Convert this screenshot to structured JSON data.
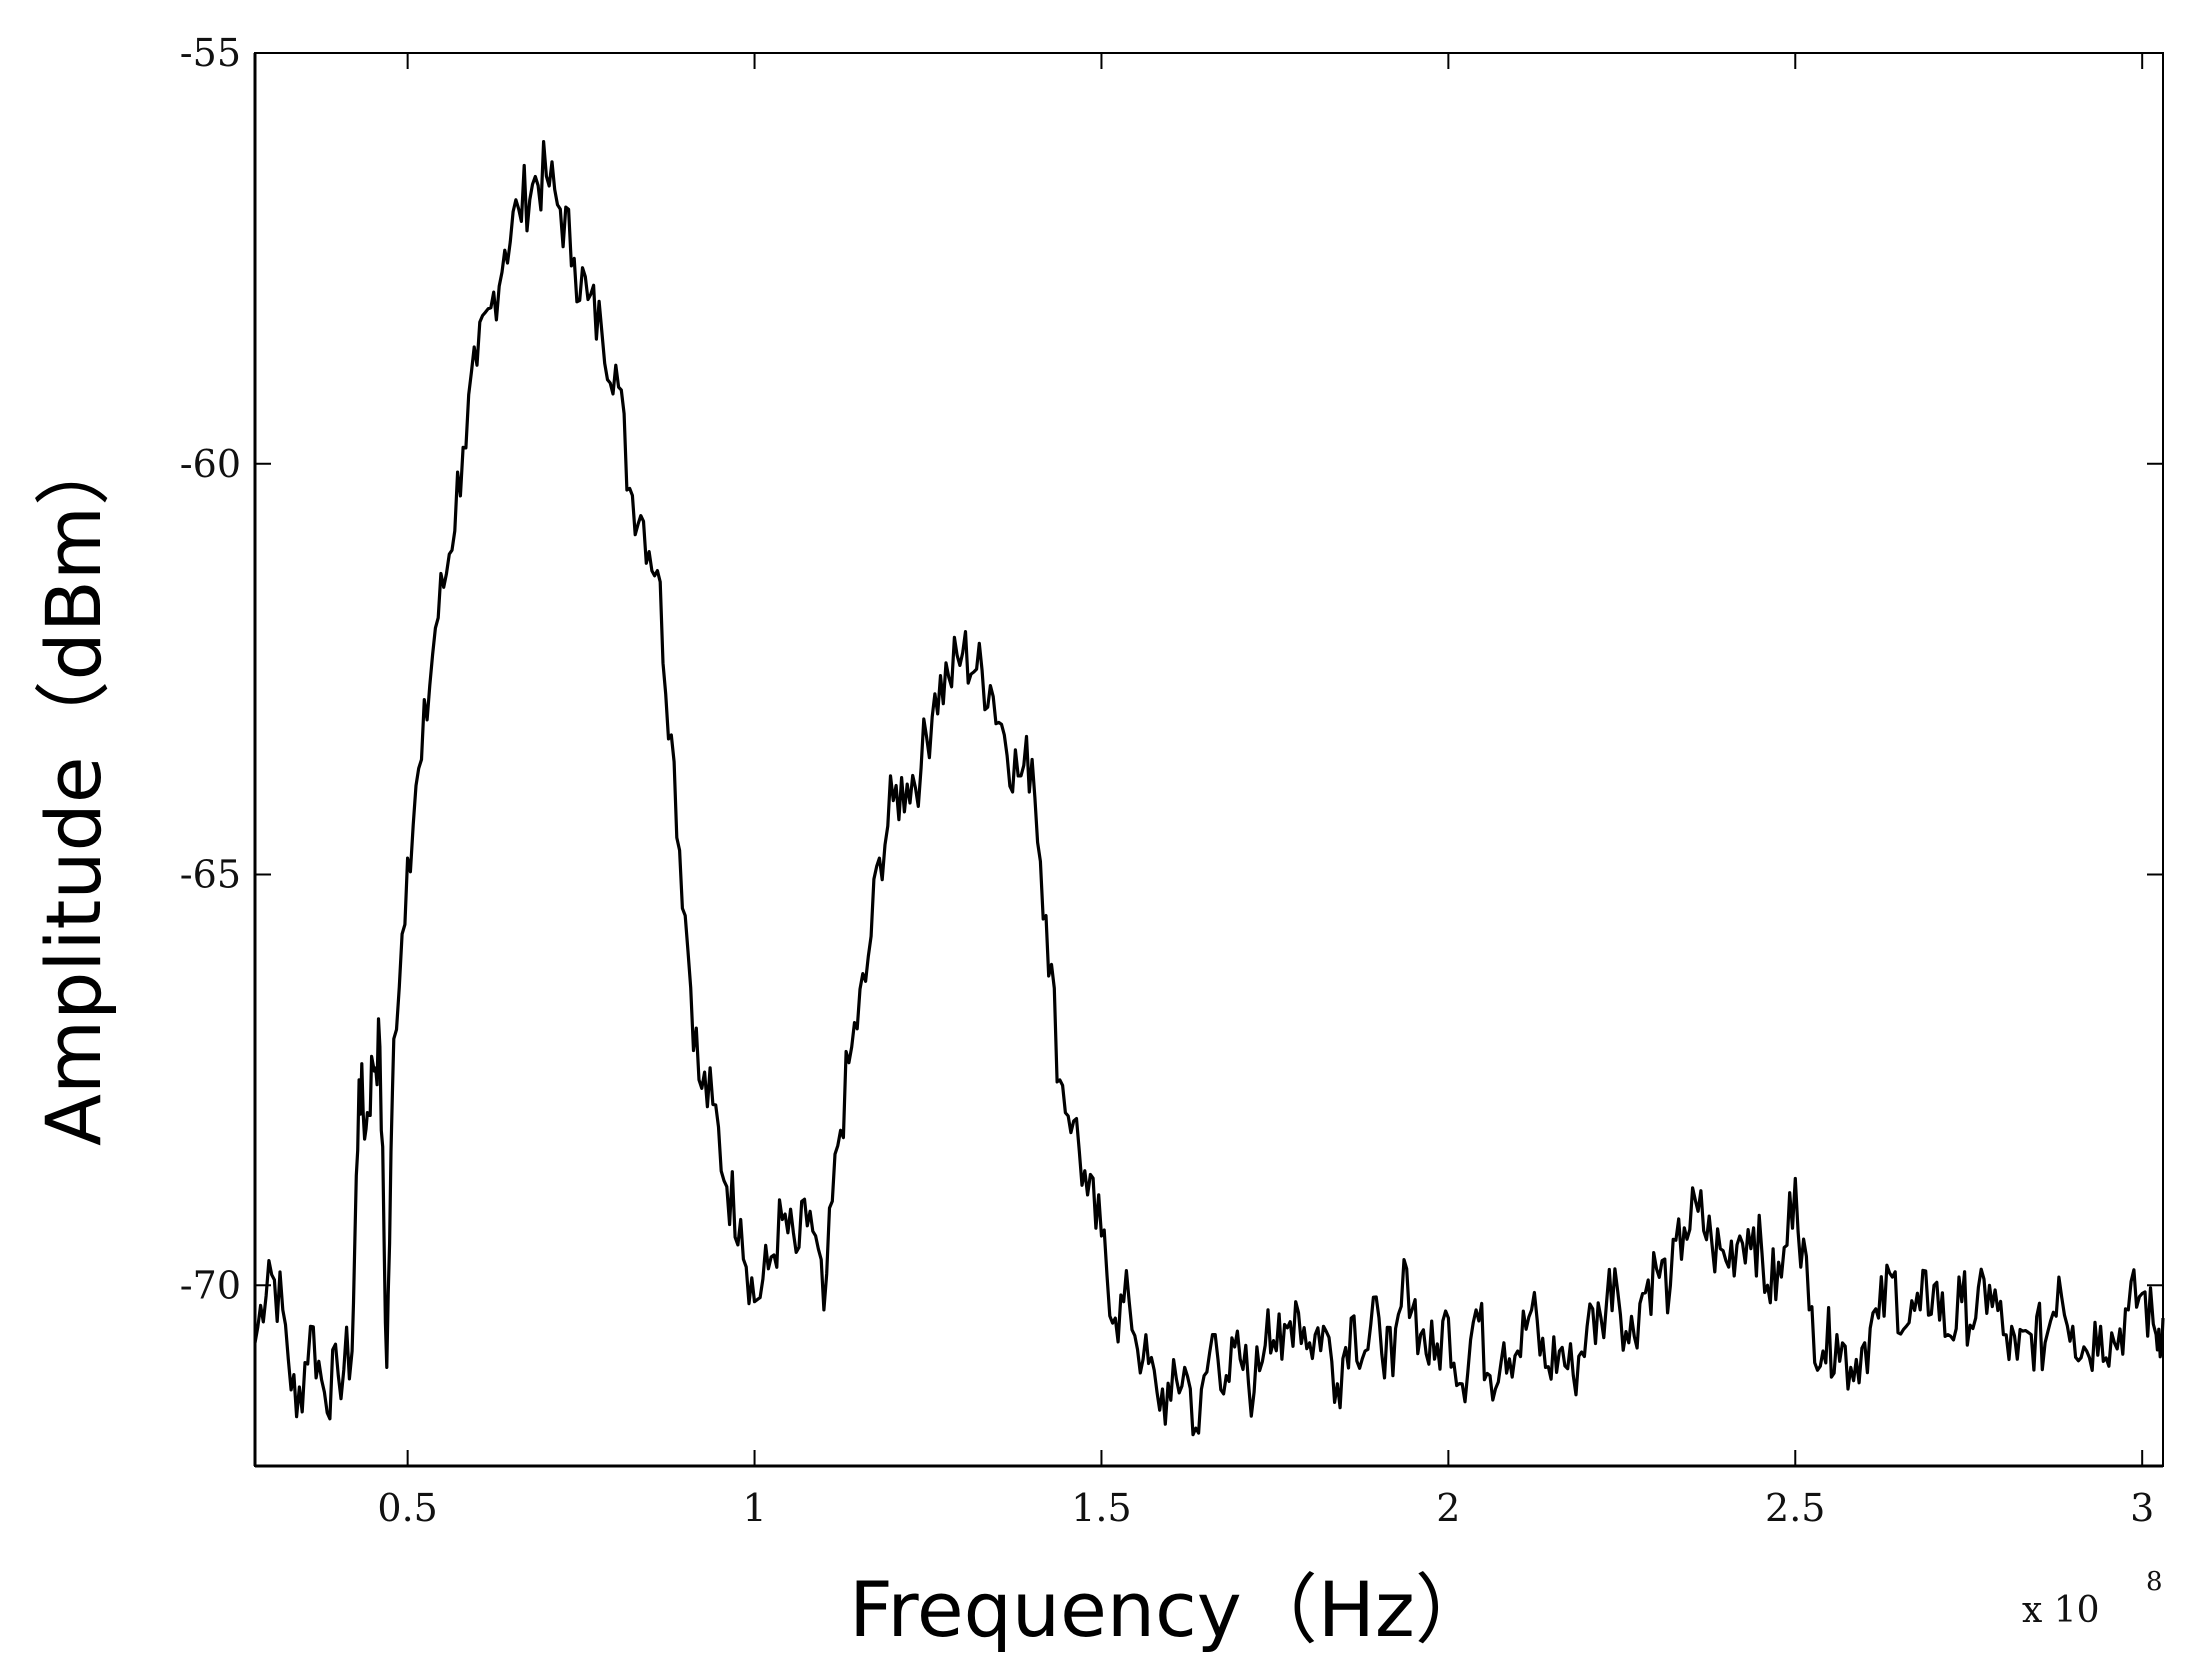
{
  "chart_data": {
    "type": "line",
    "title": "",
    "xlabel": "Frequency（Hz）",
    "ylabel": "Amplitude（dBm）",
    "x_multiplier_label": "x 10",
    "x_multiplier_exponent": "8",
    "xlim": [
      0.28,
      3.03
    ],
    "ylim": [
      -72.2,
      -55
    ],
    "x_ticks": [
      0.5,
      1,
      1.5,
      2,
      2.5,
      3
    ],
    "x_tick_labels": [
      "0.5",
      "1",
      "1.5",
      "2",
      "2.5",
      "3"
    ],
    "y_ticks": [
      -55,
      -60,
      -65,
      -70
    ],
    "y_tick_labels": [
      "-55",
      "-60",
      "-65",
      "-70"
    ],
    "grid": false,
    "legend": "none",
    "line_color": "#000000",
    "series": [
      {
        "x": [
          0.28,
          0.3,
          0.32,
          0.34,
          0.36,
          0.38,
          0.4,
          0.42,
          0.43,
          0.44,
          0.45,
          0.46,
          0.47,
          0.48,
          0.5,
          0.52,
          0.54,
          0.56,
          0.58,
          0.6,
          0.62,
          0.64,
          0.66,
          0.68,
          0.7,
          0.72,
          0.74,
          0.76,
          0.78,
          0.8,
          0.82,
          0.84,
          0.86,
          0.88,
          0.9,
          0.92,
          0.94,
          0.96,
          0.98,
          1.0,
          1.02,
          1.04,
          1.06,
          1.08,
          1.1,
          1.12,
          1.14,
          1.16,
          1.18,
          1.2,
          1.22,
          1.24,
          1.26,
          1.28,
          1.3,
          1.32,
          1.34,
          1.36,
          1.38,
          1.4,
          1.42,
          1.44,
          1.46,
          1.48,
          1.5,
          1.52,
          1.54,
          1.56,
          1.58,
          1.6,
          1.62,
          1.64,
          1.66,
          1.68,
          1.7,
          1.72,
          1.74,
          1.76,
          1.78,
          1.8,
          1.82,
          1.84,
          1.86,
          1.88,
          1.9,
          1.92,
          1.94,
          1.96,
          1.98,
          2.0,
          2.02,
          2.04,
          2.06,
          2.08,
          2.1,
          2.12,
          2.14,
          2.16,
          2.18,
          2.2,
          2.22,
          2.24,
          2.26,
          2.28,
          2.3,
          2.32,
          2.34,
          2.36,
          2.38,
          2.4,
          2.42,
          2.44,
          2.46,
          2.48,
          2.5,
          2.52,
          2.54,
          2.56,
          2.58,
          2.6,
          2.62,
          2.64,
          2.66,
          2.68,
          2.7,
          2.72,
          2.74,
          2.76,
          2.78,
          2.8,
          2.82,
          2.84,
          2.86,
          2.88,
          2.9,
          2.92,
          2.94,
          2.96,
          2.98,
          3.0,
          3.02,
          3.03
        ],
        "y": [
          -70.7,
          -69.7,
          -70.3,
          -71.6,
          -70.5,
          -71.3,
          -71.1,
          -70.8,
          -67.5,
          -68.1,
          -67.3,
          -67.1,
          -71.0,
          -67.0,
          -64.8,
          -63.6,
          -62.0,
          -61.1,
          -59.8,
          -58.8,
          -58.1,
          -57.4,
          -56.9,
          -56.6,
          -56.5,
          -56.9,
          -57.5,
          -58.0,
          -58.4,
          -58.8,
          -60.3,
          -60.7,
          -61.3,
          -63.3,
          -65.5,
          -67.5,
          -67.8,
          -68.8,
          -69.2,
          -70.2,
          -69.8,
          -69.2,
          -69.6,
          -69.1,
          -70.3,
          -68.3,
          -67.1,
          -66.3,
          -64.8,
          -64.1,
          -63.9,
          -63.7,
          -62.8,
          -62.6,
          -62.3,
          -62.5,
          -62.7,
          -63.3,
          -63.8,
          -63.6,
          -65.5,
          -67.5,
          -68.0,
          -68.9,
          -69.4,
          -70.4,
          -70.2,
          -70.9,
          -71.3,
          -71.4,
          -71.0,
          -71.8,
          -70.6,
          -71.1,
          -70.9,
          -71.3,
          -70.3,
          -70.9,
          -70.2,
          -70.7,
          -70.5,
          -71.2,
          -70.4,
          -70.8,
          -70.4,
          -71.1,
          -69.8,
          -70.6,
          -70.9,
          -70.4,
          -71.2,
          -70.3,
          -71.1,
          -70.7,
          -70.8,
          -70.3,
          -71.0,
          -70.8,
          -71.1,
          -70.5,
          -70.4,
          -69.8,
          -70.7,
          -70.1,
          -69.8,
          -70.0,
          -69.3,
          -69.1,
          -69.5,
          -69.7,
          -69.4,
          -69.3,
          -70.0,
          -69.9,
          -68.7,
          -70.3,
          -70.8,
          -70.6,
          -71.0,
          -70.7,
          -70.4,
          -69.9,
          -70.5,
          -70.3,
          -70.0,
          -70.6,
          -70.2,
          -70.4,
          -70.0,
          -70.6,
          -70.9,
          -70.6,
          -70.7,
          -69.9,
          -70.5,
          -70.8,
          -70.5,
          -70.7,
          -70.3,
          -70.1,
          -70.6,
          -70.4
        ]
      }
    ]
  }
}
